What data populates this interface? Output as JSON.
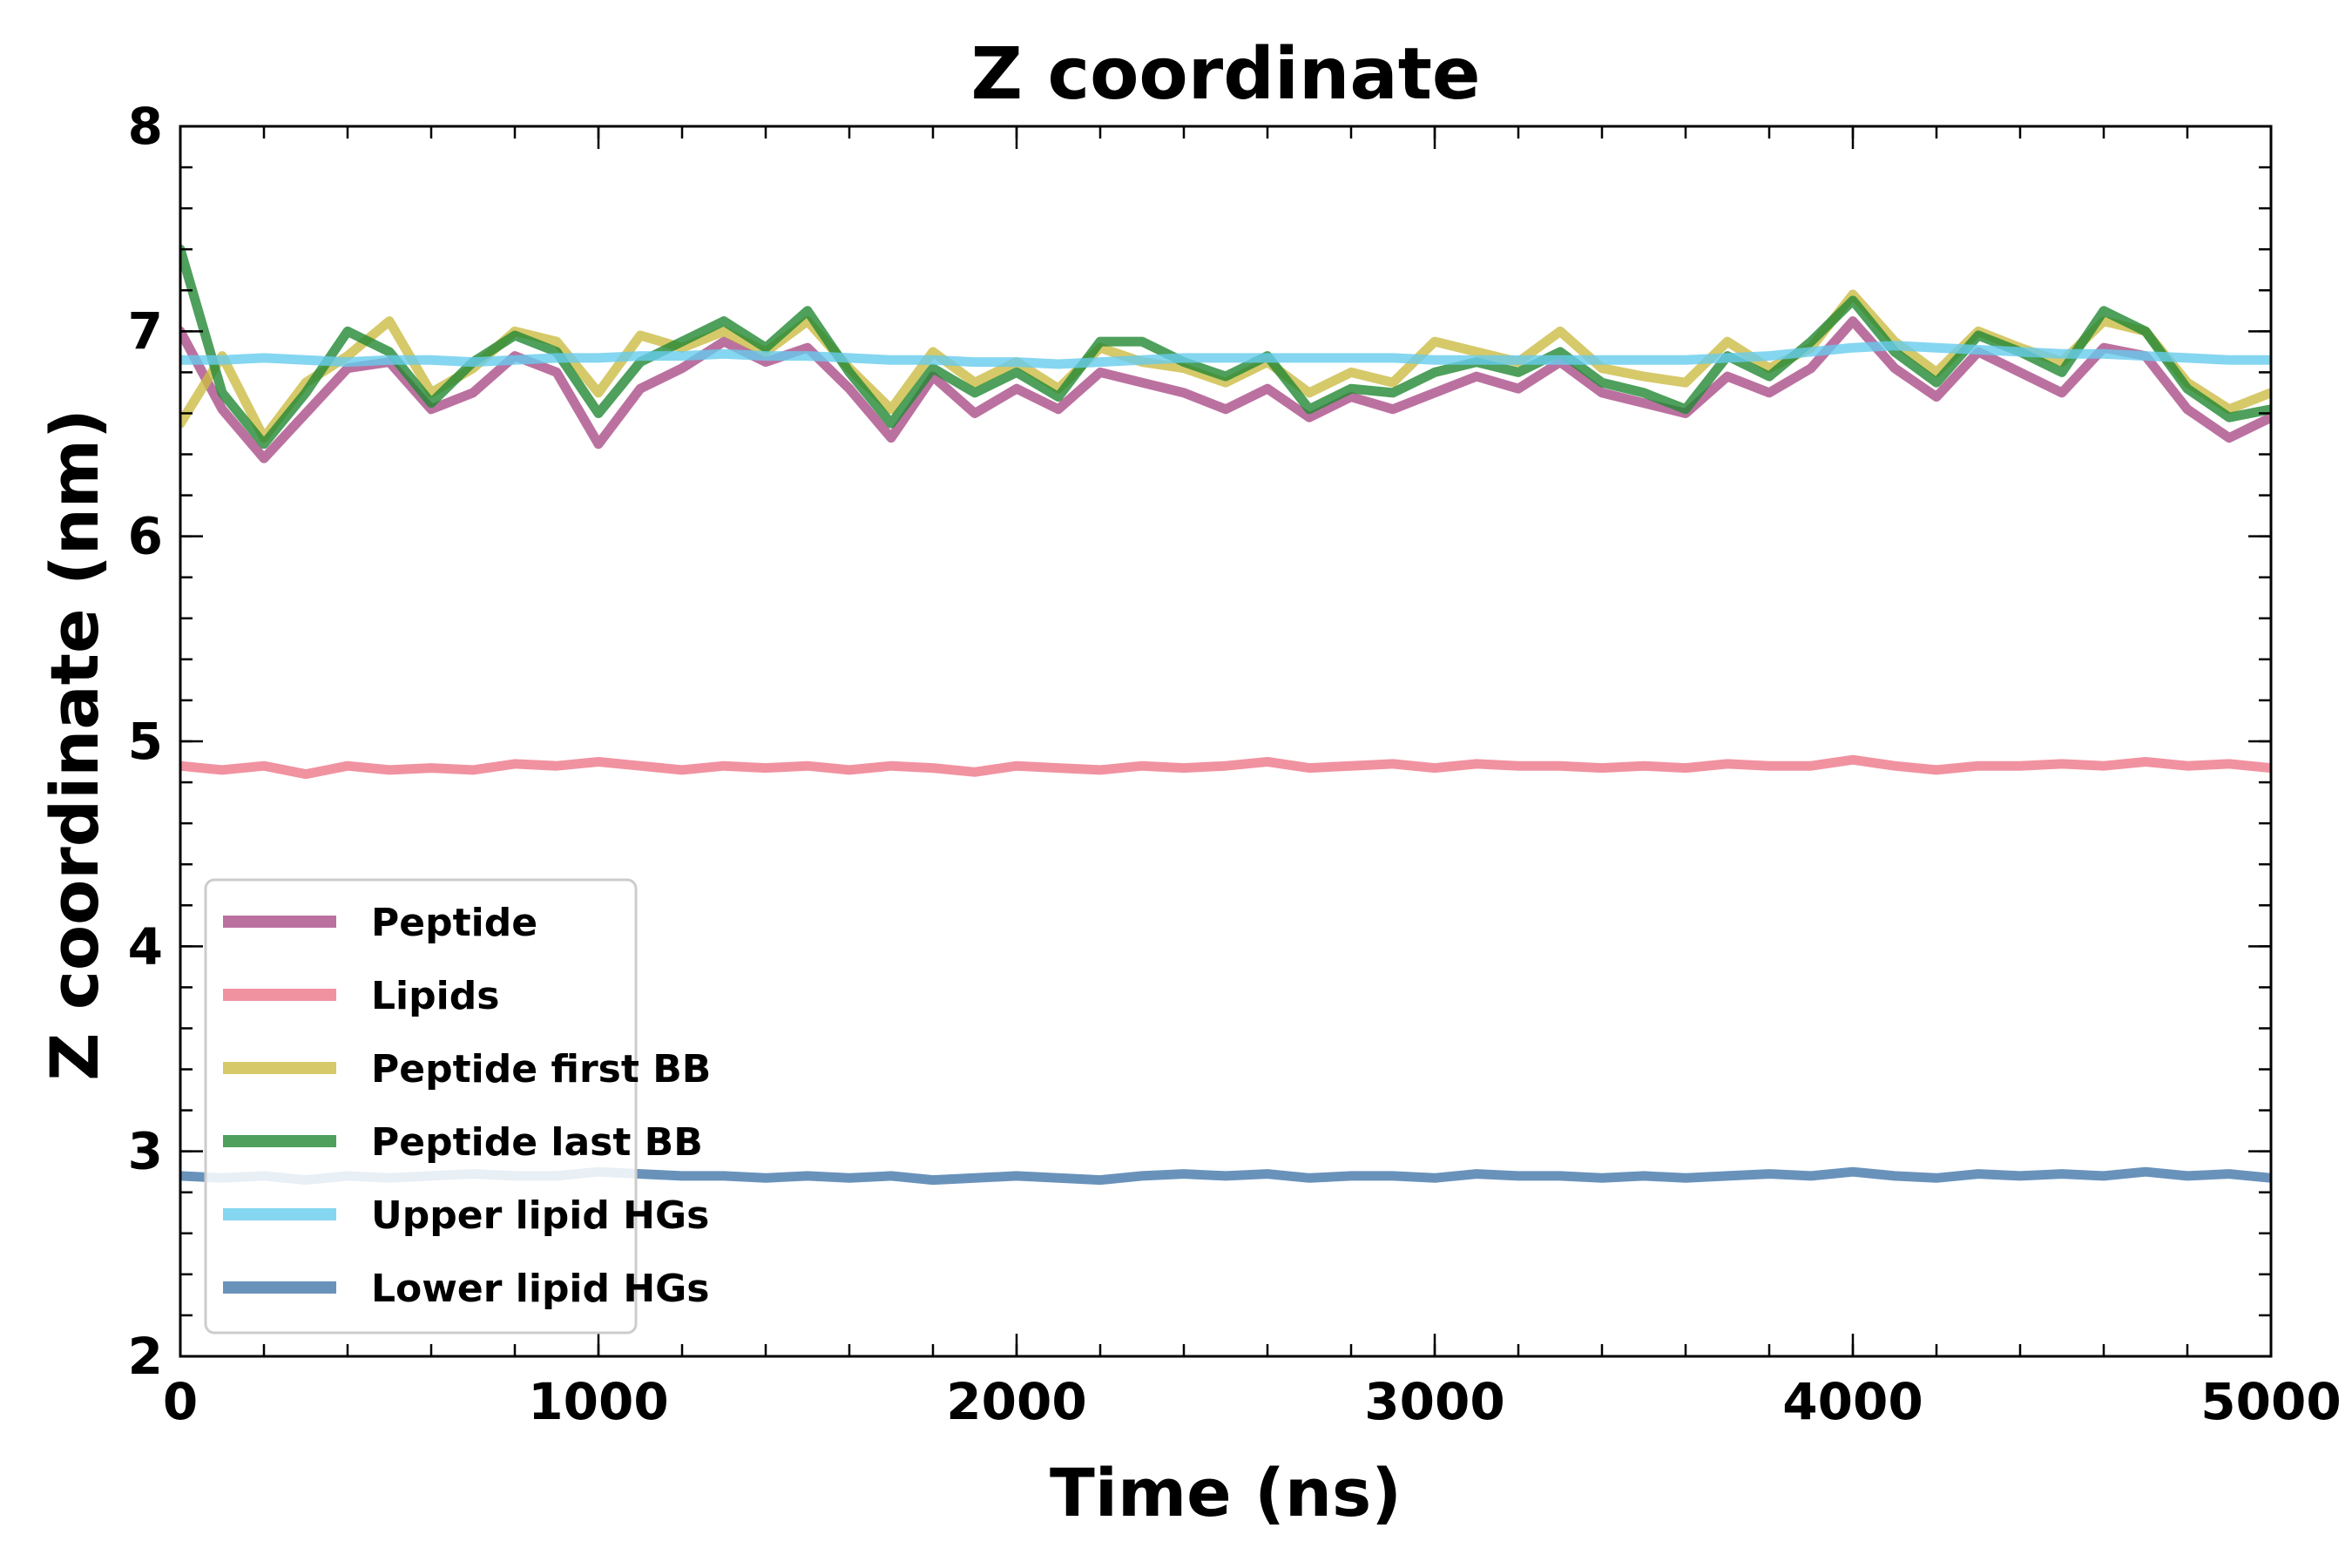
{
  "chart_data": {
    "type": "line",
    "title": "Z coordinate",
    "xlabel": "Time (ns)",
    "ylabel": "Z coordinate (nm)",
    "xlim": [
      0,
      5000
    ],
    "ylim": [
      2,
      8
    ],
    "xticks": [
      0,
      1000,
      2000,
      3000,
      4000,
      5000
    ],
    "yticks": [
      2,
      3,
      4,
      5,
      6,
      7,
      8
    ],
    "x_minor_step": 200,
    "y_minor_step": 0.2,
    "grid": false,
    "legend_position": "lower-left",
    "x": [
      0,
      100,
      200,
      300,
      400,
      500,
      600,
      700,
      800,
      900,
      1000,
      1100,
      1200,
      1300,
      1400,
      1500,
      1600,
      1700,
      1800,
      1900,
      2000,
      2100,
      2200,
      2300,
      2400,
      2500,
      2600,
      2700,
      2800,
      2900,
      3000,
      3100,
      3200,
      3300,
      3400,
      3500,
      3600,
      3700,
      3800,
      3900,
      4000,
      4100,
      4200,
      4300,
      4400,
      4500,
      4600,
      4700,
      4800,
      4900,
      5000
    ],
    "series": [
      {
        "name": "Peptide",
        "color": "#aa4d88",
        "values": [
          7.0,
          6.62,
          6.38,
          6.6,
          6.82,
          6.85,
          6.62,
          6.7,
          6.88,
          6.8,
          6.45,
          6.72,
          6.82,
          6.95,
          6.85,
          6.92,
          6.72,
          6.48,
          6.78,
          6.6,
          6.72,
          6.62,
          6.8,
          6.75,
          6.7,
          6.62,
          6.72,
          6.58,
          6.68,
          6.62,
          6.7,
          6.78,
          6.72,
          6.85,
          6.7,
          6.65,
          6.6,
          6.78,
          6.7,
          6.82,
          7.05,
          6.82,
          6.68,
          6.9,
          6.8,
          6.7,
          6.92,
          6.88,
          6.62,
          6.48,
          6.58
        ]
      },
      {
        "name": "Lipids",
        "color": "#ee7788",
        "values": [
          4.88,
          4.86,
          4.88,
          4.84,
          4.88,
          4.86,
          4.87,
          4.86,
          4.89,
          4.88,
          4.9,
          4.88,
          4.86,
          4.88,
          4.87,
          4.88,
          4.86,
          4.88,
          4.87,
          4.85,
          4.88,
          4.87,
          4.86,
          4.88,
          4.87,
          4.88,
          4.9,
          4.87,
          4.88,
          4.89,
          4.87,
          4.89,
          4.88,
          4.88,
          4.87,
          4.88,
          4.87,
          4.89,
          4.88,
          4.88,
          4.91,
          4.88,
          4.86,
          4.88,
          4.88,
          4.89,
          4.88,
          4.9,
          4.88,
          4.89,
          4.87
        ]
      },
      {
        "name": "Peptide first BB",
        "color": "#ccbb44",
        "values": [
          6.55,
          6.88,
          6.48,
          6.75,
          6.88,
          7.05,
          6.7,
          6.82,
          7.0,
          6.95,
          6.7,
          6.98,
          6.92,
          7.0,
          6.9,
          7.05,
          6.82,
          6.62,
          6.9,
          6.75,
          6.85,
          6.72,
          6.92,
          6.85,
          6.82,
          6.75,
          6.85,
          6.7,
          6.8,
          6.75,
          6.95,
          6.9,
          6.85,
          7.0,
          6.82,
          6.78,
          6.75,
          6.95,
          6.82,
          6.92,
          7.18,
          6.95,
          6.8,
          7.0,
          6.92,
          6.85,
          7.05,
          7.0,
          6.75,
          6.62,
          6.7
        ]
      },
      {
        "name": "Peptide last BB",
        "color": "#228833",
        "values": [
          7.4,
          6.7,
          6.45,
          6.7,
          7.0,
          6.9,
          6.65,
          6.85,
          6.98,
          6.9,
          6.6,
          6.85,
          6.95,
          7.05,
          6.92,
          7.1,
          6.8,
          6.55,
          6.82,
          6.7,
          6.8,
          6.68,
          6.95,
          6.95,
          6.85,
          6.78,
          6.88,
          6.62,
          6.72,
          6.7,
          6.8,
          6.85,
          6.8,
          6.9,
          6.75,
          6.7,
          6.62,
          6.88,
          6.78,
          6.95,
          7.15,
          6.9,
          6.75,
          6.98,
          6.9,
          6.8,
          7.1,
          7.0,
          6.72,
          6.58,
          6.62
        ]
      },
      {
        "name": "Upper lipid HGs",
        "color": "#66ccee",
        "values": [
          6.86,
          6.86,
          6.87,
          6.86,
          6.85,
          6.86,
          6.86,
          6.85,
          6.86,
          6.87,
          6.87,
          6.88,
          6.88,
          6.89,
          6.88,
          6.88,
          6.87,
          6.86,
          6.86,
          6.85,
          6.85,
          6.84,
          6.85,
          6.86,
          6.87,
          6.87,
          6.87,
          6.87,
          6.87,
          6.87,
          6.86,
          6.86,
          6.86,
          6.86,
          6.86,
          6.86,
          6.86,
          6.87,
          6.88,
          6.9,
          6.92,
          6.93,
          6.92,
          6.91,
          6.9,
          6.89,
          6.89,
          6.88,
          6.87,
          6.86,
          6.86
        ]
      },
      {
        "name": "Lower lipid HGs",
        "color": "#4477aa",
        "values": [
          2.88,
          2.87,
          2.88,
          2.86,
          2.88,
          2.87,
          2.88,
          2.89,
          2.88,
          2.88,
          2.9,
          2.89,
          2.88,
          2.88,
          2.87,
          2.88,
          2.87,
          2.88,
          2.86,
          2.87,
          2.88,
          2.87,
          2.86,
          2.88,
          2.89,
          2.88,
          2.89,
          2.87,
          2.88,
          2.88,
          2.87,
          2.89,
          2.88,
          2.88,
          2.87,
          2.88,
          2.87,
          2.88,
          2.89,
          2.88,
          2.9,
          2.88,
          2.87,
          2.89,
          2.88,
          2.89,
          2.88,
          2.9,
          2.88,
          2.89,
          2.87
        ]
      }
    ]
  }
}
